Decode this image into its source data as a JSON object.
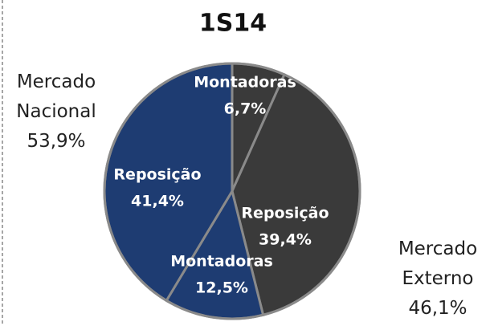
{
  "chart_data": {
    "type": "pie",
    "title": "1S14",
    "categories": [
      "Montadoras",
      "Reposição",
      "Montadoras",
      "Reposição"
    ],
    "values": [
      6.7,
      39.4,
      12.5,
      41.4
    ],
    "value_labels": [
      "6,7%",
      "39,4%",
      "12,5%",
      "41,4%"
    ],
    "colors": [
      "#3a3a3a",
      "#3a3a3a",
      "#1e3c72",
      "#1e3c72"
    ],
    "groups": [
      {
        "name": "Mercado Externo",
        "value": 46.1,
        "value_label": "46,1%"
      },
      {
        "name": "Mercado Nacional",
        "value": 53.9,
        "value_label": "53,9%"
      }
    ]
  }
}
